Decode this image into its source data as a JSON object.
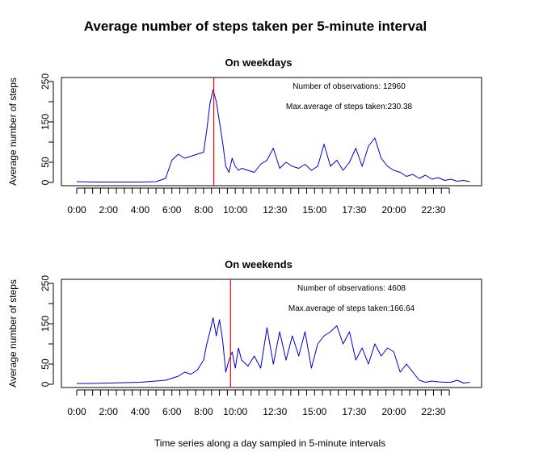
{
  "figure": {
    "title": "Average number of steps taken per 5-minute interval",
    "xlabel": "Time series along a day sampled in 5-minute intervals"
  },
  "chart_data": [
    {
      "type": "line",
      "title": "On weekdays",
      "xlabel": "",
      "ylabel": "Average number of steps",
      "xlim": [
        0,
        2400
      ],
      "ylim": [
        0,
        250
      ],
      "yticks": [
        0,
        50,
        100,
        150,
        200,
        250
      ],
      "ytick_labels": [
        "0",
        "50",
        "",
        "150",
        "",
        "250"
      ],
      "xticks_major": [
        "0:00",
        "2:00",
        "4:00",
        "6:00",
        "8:00",
        "10:00",
        "12:30",
        "15:00",
        "17:30",
        "20:00",
        "22:30"
      ],
      "xticks_major_pos": [
        0,
        100,
        200,
        300,
        400,
        500,
        625,
        750,
        875,
        1000,
        1125
      ],
      "xtick_step": 25,
      "xtick_count": 48,
      "series": [
        {
          "color": "#0000cc",
          "x": [
            0,
            50,
            100,
            150,
            200,
            250,
            280,
            300,
            320,
            340,
            360,
            380,
            400,
            410,
            420,
            430,
            440,
            450,
            460,
            470,
            480,
            490,
            500,
            510,
            520,
            540,
            560,
            580,
            600,
            620,
            640,
            660,
            680,
            700,
            720,
            740,
            760,
            780,
            800,
            820,
            840,
            860,
            880,
            900,
            920,
            940,
            960,
            980,
            1000,
            1020,
            1040,
            1060,
            1080,
            1100,
            1120,
            1140,
            1160,
            1180,
            1200,
            1220,
            1240
          ],
          "y": [
            2,
            1,
            1,
            1,
            1,
            2,
            10,
            55,
            70,
            60,
            65,
            70,
            75,
            130,
            195,
            230,
            200,
            150,
            100,
            40,
            25,
            60,
            40,
            30,
            35,
            30,
            25,
            45,
            55,
            85,
            35,
            50,
            40,
            35,
            45,
            30,
            40,
            95,
            40,
            55,
            30,
            50,
            85,
            40,
            90,
            110,
            60,
            40,
            30,
            25,
            15,
            20,
            10,
            18,
            8,
            12,
            5,
            8,
            3,
            5,
            2
          ]
        }
      ],
      "vline": {
        "x": 432,
        "color": "#ff0000"
      },
      "annotations": [
        "Number of observations: 12960",
        "Max.average of steps taken:230.38"
      ]
    },
    {
      "type": "line",
      "title": "On weekends",
      "xlabel": "",
      "ylabel": "Average number of steps",
      "xlim": [
        0,
        2400
      ],
      "ylim": [
        0,
        250
      ],
      "yticks": [
        0,
        50,
        100,
        150,
        200,
        250
      ],
      "ytick_labels": [
        "0",
        "50",
        "",
        "150",
        "",
        "250"
      ],
      "xticks_major": [
        "0:00",
        "2:00",
        "4:00",
        "6:00",
        "8:00",
        "10:00",
        "12:30",
        "15:00",
        "17:30",
        "20:00",
        "22:30"
      ],
      "xticks_major_pos": [
        0,
        100,
        200,
        300,
        400,
        500,
        625,
        750,
        875,
        1000,
        1125
      ],
      "xtick_step": 25,
      "xtick_count": 48,
      "series": [
        {
          "color": "#0000cc",
          "x": [
            0,
            50,
            100,
            150,
            200,
            250,
            280,
            300,
            320,
            340,
            360,
            380,
            400,
            410,
            420,
            430,
            440,
            450,
            460,
            470,
            480,
            490,
            500,
            510,
            520,
            540,
            560,
            580,
            600,
            620,
            640,
            660,
            680,
            700,
            720,
            740,
            760,
            780,
            800,
            820,
            840,
            860,
            880,
            900,
            920,
            940,
            960,
            980,
            1000,
            1020,
            1040,
            1060,
            1080,
            1100,
            1120,
            1140,
            1160,
            1180,
            1200,
            1220,
            1240
          ],
          "y": [
            2,
            2,
            3,
            4,
            5,
            8,
            10,
            15,
            20,
            30,
            25,
            35,
            60,
            100,
            130,
            165,
            120,
            160,
            110,
            30,
            60,
            80,
            40,
            90,
            60,
            45,
            70,
            40,
            140,
            50,
            130,
            60,
            120,
            70,
            130,
            40,
            100,
            120,
            130,
            145,
            100,
            130,
            60,
            90,
            50,
            100,
            70,
            90,
            80,
            30,
            50,
            30,
            10,
            5,
            8,
            6,
            5,
            5,
            10,
            3,
            5
          ]
        }
      ],
      "vline": {
        "x": 485,
        "color": "#ff0000"
      },
      "annotations": [
        "Number of observations: 4608",
        "Max.average of steps taken:166.64"
      ]
    }
  ]
}
